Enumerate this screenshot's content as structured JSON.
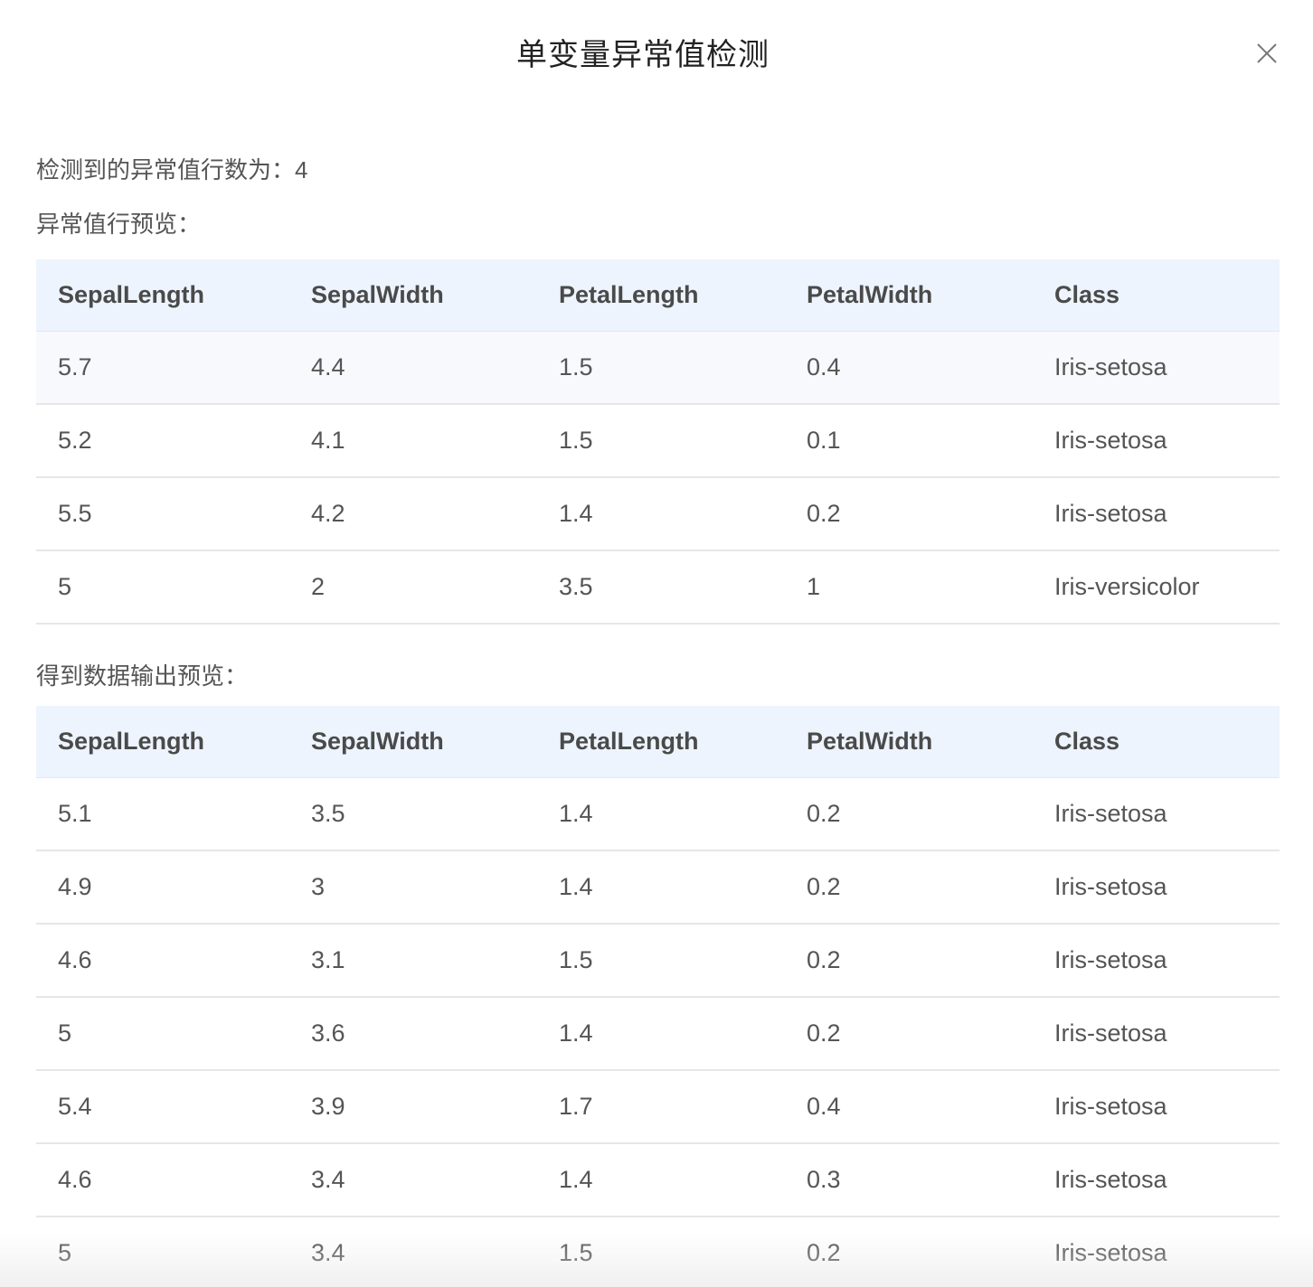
{
  "modal": {
    "title": "单变量异常值检测"
  },
  "summary": {
    "label": "检测到的异常值行数为：",
    "count": "4"
  },
  "outliers_section": {
    "label": "异常值行预览："
  },
  "output_section": {
    "label": "得到数据输出预览："
  },
  "columns": [
    "SepalLength",
    "SepalWidth",
    "PetalLength",
    "PetalWidth",
    "Class"
  ],
  "outlier_rows": [
    [
      "5.7",
      "4.4",
      "1.5",
      "0.4",
      "Iris-setosa"
    ],
    [
      "5.2",
      "4.1",
      "1.5",
      "0.1",
      "Iris-setosa"
    ],
    [
      "5.5",
      "4.2",
      "1.4",
      "0.2",
      "Iris-setosa"
    ],
    [
      "5",
      "2",
      "3.5",
      "1",
      "Iris-versicolor"
    ]
  ],
  "output_rows": [
    [
      "5.1",
      "3.5",
      "1.4",
      "0.2",
      "Iris-setosa"
    ],
    [
      "4.9",
      "3",
      "1.4",
      "0.2",
      "Iris-setosa"
    ],
    [
      "4.6",
      "3.1",
      "1.5",
      "0.2",
      "Iris-setosa"
    ],
    [
      "5",
      "3.6",
      "1.4",
      "0.2",
      "Iris-setosa"
    ],
    [
      "5.4",
      "3.9",
      "1.7",
      "0.4",
      "Iris-setosa"
    ],
    [
      "4.6",
      "3.4",
      "1.4",
      "0.3",
      "Iris-setosa"
    ],
    [
      "5",
      "3.4",
      "1.5",
      "0.2",
      "Iris-setosa"
    ]
  ],
  "icons": {
    "close": "close-icon"
  },
  "colors": {
    "header_bg": "#edf4fd",
    "row_highlight": "#f7f9fc",
    "border": "#e6e6e6"
  }
}
